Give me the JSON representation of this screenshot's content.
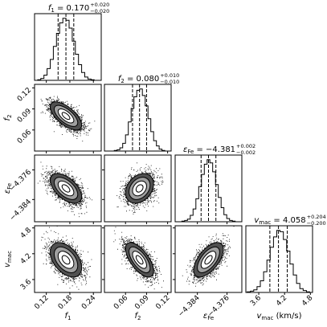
{
  "chart_data": {
    "type": "corner",
    "parameters": [
      {
        "id": "f1",
        "label": "f",
        "sub": "1",
        "range": [
          0.09,
          0.26
        ],
        "ticks": [
          0.12,
          0.18,
          0.24
        ],
        "tick_labels": [
          "0.12",
          "0.18",
          "0.24"
        ],
        "title_main": "f",
        "title_sub": "1",
        "title_value": " = 0.170",
        "title_plus": "+0.020",
        "title_minus": "−0.020",
        "quantiles": [
          0.15,
          0.17,
          0.19
        ],
        "histogram": [
          1,
          3,
          8,
          18,
          32,
          52,
          72,
          88,
          95,
          92,
          80,
          60,
          40,
          24,
          12,
          5,
          2,
          1
        ]
      },
      {
        "id": "f2",
        "label": "f",
        "sub": "2",
        "range": [
          0.03,
          0.125
        ],
        "ticks": [
          0.06,
          0.09,
          0.12
        ],
        "tick_labels": [
          "0.06",
          "0.09",
          "0.12"
        ],
        "title_main": "f",
        "title_sub": "2",
        "title_value": " = 0.080",
        "title_plus": "+0.010",
        "title_minus": "−0.010",
        "quantiles": [
          0.07,
          0.08,
          0.09
        ],
        "histogram": [
          1,
          2,
          5,
          12,
          25,
          45,
          66,
          84,
          94,
          96,
          86,
          70,
          50,
          30,
          16,
          8,
          3,
          1
        ]
      },
      {
        "id": "eps",
        "label": "ε",
        "sub": "Fe",
        "range": [
          -4.39,
          -4.372
        ],
        "ticks": [
          -4.384,
          -4.376
        ],
        "tick_labels": [
          "−4.384",
          "−4.376"
        ],
        "title_main": "ε",
        "title_sub": "Fe",
        "title_value": " = −4.381",
        "title_plus": "+0.002",
        "title_minus": "−0.002",
        "quantiles": [
          -4.383,
          -4.381,
          -4.379
        ],
        "histogram": [
          1,
          2,
          4,
          10,
          20,
          36,
          55,
          74,
          90,
          97,
          92,
          78,
          58,
          38,
          22,
          11,
          5,
          2,
          1
        ]
      },
      {
        "id": "vmac",
        "label": "v",
        "sub": "mac",
        "unit": " (km/s)",
        "range": [
          3.3,
          4.85
        ],
        "ticks": [
          3.6,
          4.2,
          4.8
        ],
        "tick_labels": [
          "3.6",
          "4.2",
          "4.8"
        ],
        "title_main": "v",
        "title_sub": "mac",
        "title_value": " = 4.058",
        "title_plus": "+0.204",
        "title_minus": "−0.200",
        "quantiles": [
          3.858,
          4.058,
          4.262
        ],
        "histogram": [
          1,
          2,
          4,
          9,
          18,
          32,
          50,
          70,
          86,
          96,
          94,
          82,
          64,
          44,
          27,
          14,
          6,
          3,
          1
        ]
      }
    ],
    "covariance_pairs": [
      {
        "row": 1,
        "col": 0,
        "center": [
          0.17,
          0.08
        ],
        "sigma": [
          0.02,
          0.01
        ],
        "rho": -0.65
      },
      {
        "row": 2,
        "col": 0,
        "center": [
          0.17,
          -4.381
        ],
        "sigma": [
          0.02,
          0.002
        ],
        "rho": -0.55
      },
      {
        "row": 2,
        "col": 1,
        "center": [
          0.08,
          -4.381
        ],
        "sigma": [
          0.01,
          0.002
        ],
        "rho": 0.3
      },
      {
        "row": 3,
        "col": 0,
        "center": [
          0.17,
          4.058
        ],
        "sigma": [
          0.02,
          0.2
        ],
        "rho": -0.45
      },
      {
        "row": 3,
        "col": 1,
        "center": [
          0.08,
          4.058
        ],
        "sigma": [
          0.01,
          0.2
        ],
        "rho": -0.65
      },
      {
        "row": 3,
        "col": 2,
        "center": [
          -4.381,
          4.058
        ],
        "sigma": [
          0.002,
          0.2
        ],
        "rho": 0.6
      }
    ],
    "contour_levels": [
      0.5,
      1.0,
      1.5,
      2.0
    ],
    "grid": false,
    "legend": "none"
  }
}
